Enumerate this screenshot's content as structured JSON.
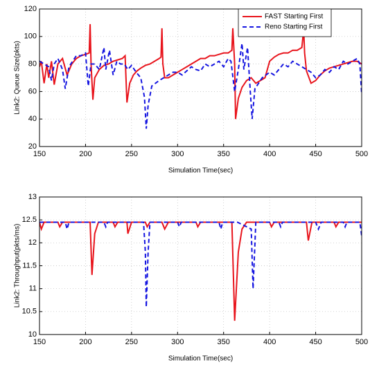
{
  "chart_data": [
    {
      "type": "line",
      "xlabel": "Simulation Time(sec)",
      "ylabel": "Link2: Queue Size(pkts)",
      "xlim": [
        150,
        500
      ],
      "ylim": [
        20,
        120
      ],
      "xticks": [
        150,
        200,
        250,
        300,
        350,
        400,
        450,
        500
      ],
      "yticks": [
        20,
        40,
        60,
        80,
        100,
        120
      ],
      "grid": true,
      "legend": "upper right",
      "series": [
        {
          "name": "FAST Starting First",
          "color": "#e8141c",
          "linestyle": "solid",
          "x": [
            150,
            152,
            155,
            158,
            160,
            163,
            166,
            170,
            175,
            180,
            185,
            190,
            195,
            200,
            204,
            205,
            206,
            208,
            210,
            215,
            220,
            225,
            230,
            235,
            240,
            243,
            245,
            248,
            252,
            256,
            260,
            265,
            270,
            275,
            280,
            282,
            283,
            284,
            286,
            290,
            295,
            300,
            305,
            310,
            315,
            320,
            325,
            330,
            335,
            340,
            345,
            350,
            355,
            359,
            360,
            362,
            363,
            366,
            370,
            375,
            380,
            385,
            390,
            395,
            400,
            405,
            410,
            415,
            420,
            425,
            430,
            435,
            437,
            438,
            440,
            445,
            450,
            455,
            460,
            465,
            470,
            475,
            480,
            485,
            490,
            495,
            500
          ],
          "values": [
            78,
            82,
            66,
            80,
            70,
            82,
            65,
            80,
            84,
            72,
            80,
            84,
            86,
            87,
            88,
            109,
            80,
            54,
            70,
            76,
            79,
            80,
            82,
            83,
            84,
            86,
            52,
            66,
            72,
            75,
            77,
            79,
            80,
            82,
            84,
            85,
            106,
            80,
            70,
            70,
            72,
            74,
            76,
            78,
            80,
            82,
            84,
            84,
            86,
            86,
            87,
            88,
            88,
            90,
            106,
            80,
            40,
            55,
            63,
            68,
            70,
            66,
            68,
            70,
            82,
            85,
            87,
            88,
            88,
            90,
            90,
            92,
            105,
            88,
            75,
            66,
            68,
            72,
            75,
            77,
            78,
            79,
            80,
            81,
            82,
            82,
            80
          ]
        },
        {
          "name": "Reno Starting First",
          "color": "#1414e0",
          "linestyle": "dashed",
          "x": [
            150,
            155,
            160,
            163,
            166,
            170,
            175,
            178,
            182,
            186,
            190,
            195,
            200,
            203,
            206,
            210,
            215,
            220,
            222,
            226,
            230,
            234,
            238,
            242,
            246,
            250,
            255,
            260,
            264,
            266,
            268,
            272,
            276,
            280,
            285,
            290,
            295,
            300,
            305,
            310,
            315,
            320,
            325,
            330,
            335,
            340,
            345,
            350,
            355,
            358,
            362,
            366,
            370,
            372,
            376,
            379,
            381,
            384,
            388,
            392,
            396,
            400,
            405,
            410,
            415,
            420,
            425,
            430,
            435,
            440,
            445,
            450,
            455,
            460,
            465,
            470,
            475,
            480,
            485,
            490,
            495,
            498,
            500
          ],
          "values": [
            82,
            80,
            78,
            68,
            80,
            84,
            76,
            62,
            78,
            82,
            86,
            86,
            88,
            64,
            80,
            80,
            76,
            92,
            76,
            90,
            72,
            82,
            80,
            80,
            76,
            79,
            74,
            70,
            56,
            33,
            50,
            64,
            66,
            68,
            70,
            72,
            74,
            74,
            72,
            75,
            78,
            76,
            75,
            80,
            78,
            80,
            82,
            78,
            84,
            82,
            60,
            76,
            95,
            76,
            92,
            60,
            40,
            62,
            66,
            70,
            72,
            74,
            72,
            76,
            80,
            78,
            82,
            80,
            78,
            76,
            74,
            70,
            72,
            76,
            74,
            78,
            76,
            82,
            80,
            82,
            84,
            80,
            58
          ]
        }
      ]
    },
    {
      "type": "line",
      "xlabel": "Simulation Time(sec)",
      "ylabel": "Link2: Throughput(pkts/ms)",
      "xlim": [
        150,
        500
      ],
      "ylim": [
        10,
        13
      ],
      "xticks": [
        150,
        200,
        250,
        300,
        350,
        400,
        450,
        500
      ],
      "yticks": [
        10,
        10.5,
        11,
        11.5,
        12,
        12.5,
        13
      ],
      "grid": true,
      "series": [
        {
          "color": "#e8141c",
          "linestyle": "solid",
          "x": [
            150,
            152,
            155,
            170,
            172,
            175,
            205,
            207,
            210,
            214,
            230,
            232,
            235,
            245,
            246,
            250,
            265,
            267,
            270,
            283,
            286,
            290,
            320,
            322,
            325,
            359,
            362,
            366,
            370,
            375,
            400,
            402,
            405,
            440,
            442,
            446,
            470,
            472,
            475,
            500
          ],
          "values": [
            12.45,
            12.3,
            12.45,
            12.45,
            12.35,
            12.45,
            12.45,
            11.3,
            12.2,
            12.45,
            12.45,
            12.35,
            12.45,
            12.45,
            12.2,
            12.45,
            12.45,
            12.35,
            12.45,
            12.45,
            12.3,
            12.45,
            12.45,
            12.35,
            12.45,
            12.45,
            10.3,
            11.8,
            12.3,
            12.45,
            12.45,
            12.35,
            12.45,
            12.45,
            12.05,
            12.45,
            12.45,
            12.35,
            12.45,
            12.45
          ]
        },
        {
          "color": "#1414e0",
          "linestyle": "dashed",
          "x": [
            150,
            178,
            180,
            182,
            220,
            222,
            224,
            263,
            265,
            266,
            268,
            270,
            300,
            302,
            304,
            345,
            347,
            349,
            365,
            380,
            382,
            385,
            410,
            412,
            414,
            450,
            453,
            456,
            480,
            482,
            484,
            498,
            500
          ],
          "values": [
            12.45,
            12.45,
            12.3,
            12.45,
            12.45,
            12.35,
            12.45,
            12.45,
            11.8,
            10.6,
            11.8,
            12.45,
            12.45,
            12.35,
            12.45,
            12.45,
            12.3,
            12.45,
            12.45,
            12.3,
            11.0,
            12.45,
            12.45,
            12.35,
            12.45,
            12.45,
            12.3,
            12.45,
            12.45,
            12.35,
            12.45,
            12.45,
            12.15
          ]
        }
      ]
    }
  ]
}
